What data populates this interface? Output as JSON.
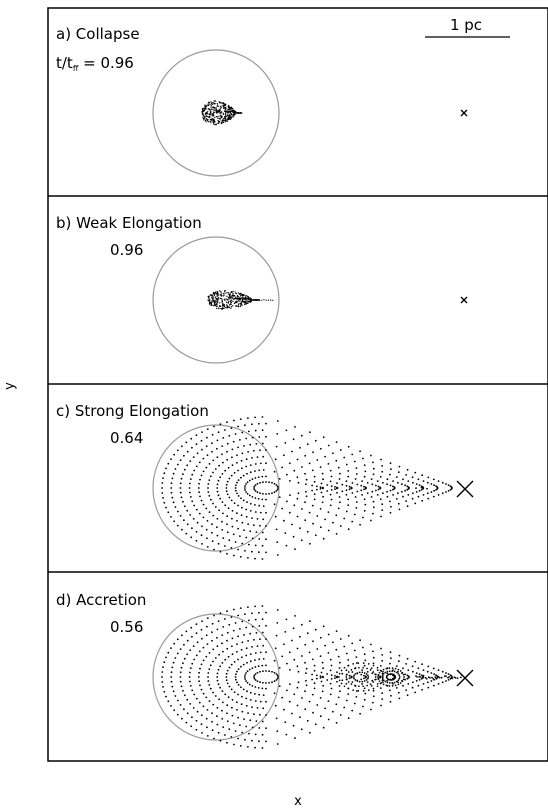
{
  "axes": {
    "xlabel": "x",
    "ylabel": "y"
  },
  "scale_bar": {
    "label": "1 pc"
  },
  "panels": [
    {
      "label": "a) Collapse",
      "time_prefix": "t/t",
      "time_sub": "ff",
      "time_value": " = 0.96",
      "time": "0.96",
      "blob": {
        "kind": "teardrop-small",
        "length": 0.55,
        "halfwidth": 0.22
      },
      "marker": "small-x"
    },
    {
      "label": "b) Weak Elongation",
      "time": "0.96",
      "blob": {
        "kind": "teardrop-small-tail",
        "length": 0.78,
        "halfwidth": 0.18
      },
      "marker": "small-x"
    },
    {
      "label": "c) Strong Elongation",
      "time": "0.64",
      "blob": {
        "kind": "teardrop-large",
        "length": 2.6,
        "halfwidth": 0.8
      },
      "marker": "large-x"
    },
    {
      "label": "d) Accretion",
      "time": "0.56",
      "blob": {
        "kind": "teardrop-accretion",
        "length": 2.6,
        "halfwidth": 0.8
      },
      "marker": "large-x"
    }
  ],
  "colors": {
    "ring": "#9a9a9a",
    "ink": "#000000",
    "background": "#ffffff"
  }
}
